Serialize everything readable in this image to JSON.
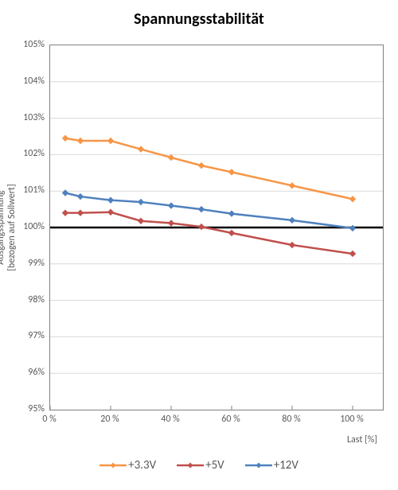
{
  "chart": {
    "type": "line",
    "title": "Spannungsstabilität",
    "title_fontsize": 20,
    "title_fontweight": "bold",
    "title_color": "#000000",
    "background_color": "#ffffff",
    "plot_border_color": "#808080",
    "grid_color": "#d9d9d9",
    "tick_label_fontsize": 12,
    "tick_label_color": "#595959",
    "axis_title_fontsize": 12,
    "axis_title_color": "#595959",
    "yAxis": {
      "title": "Ausgangsspannung\n[bezogen auf Sollwert]",
      "min": 95,
      "max": 105,
      "tick_step": 1,
      "ticks": [
        95,
        96,
        97,
        98,
        99,
        100,
        101,
        102,
        103,
        104,
        105
      ],
      "tick_labels": [
        "95%",
        "96%",
        "97%",
        "98%",
        "99%",
        "100%",
        "101%",
        "102%",
        "103%",
        "104%",
        "105%"
      ]
    },
    "xAxis": {
      "title": "Last [%]",
      "min": 0,
      "max": 110,
      "tick_step": 20,
      "ticks": [
        0,
        20,
        40,
        60,
        80,
        100
      ],
      "tick_labels": [
        "0 %",
        "20 %",
        "40 %",
        "60 %",
        "80 %",
        "100 %"
      ]
    },
    "x_values": [
      5,
      10,
      20,
      30,
      40,
      50,
      60,
      80,
      100
    ],
    "reference_line": {
      "y": 100,
      "color": "#000000",
      "width": 2.5
    },
    "series": [
      {
        "name": "+3.3V",
        "color": "#f79646",
        "line_width": 2.5,
        "marker": "diamond",
        "marker_size": 7,
        "y": [
          102.45,
          102.38,
          102.38,
          102.15,
          101.92,
          101.7,
          101.52,
          101.15,
          100.78
        ]
      },
      {
        "name": "+5V",
        "color": "#c0504d",
        "line_width": 2.5,
        "marker": "diamond",
        "marker_size": 7,
        "y": [
          100.4,
          100.4,
          100.42,
          100.18,
          100.12,
          100.02,
          99.85,
          99.52,
          99.28
        ]
      },
      {
        "name": "+12V",
        "color": "#4f81bd",
        "line_width": 2.5,
        "marker": "diamond",
        "marker_size": 7,
        "y": [
          100.95,
          100.85,
          100.75,
          100.7,
          100.6,
          100.5,
          100.38,
          100.2,
          99.98
        ]
      }
    ],
    "legend": {
      "position": "bottom",
      "fontsize": 15,
      "color": "#595959"
    }
  }
}
